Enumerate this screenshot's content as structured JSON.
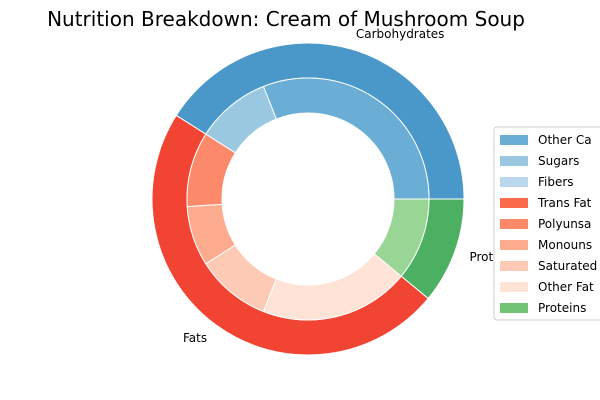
{
  "chart_data": {
    "type": "pie",
    "title": "Nutrition Breakdown:  Cream of Mushroom Soup",
    "outer": {
      "labels": [
        "Carbohydrates",
        "Fats",
        "Proteins"
      ],
      "values": [
        41,
        48,
        11
      ],
      "colors": [
        "#4a98c9",
        "#f14432",
        "#4bb062"
      ]
    },
    "inner": {
      "labels": [
        "Other Carbohydrates",
        "Sugars",
        "Fibers",
        "Trans Fats",
        "Polyunsaturated Fats",
        "Monounsaturated Fats",
        "Saturated Fats",
        "Other Fats",
        "Proteins"
      ],
      "values": [
        31,
        10,
        0,
        0,
        10,
        8,
        10,
        20,
        11
      ],
      "colors": [
        "#6aaed6",
        "#9ac8e0",
        "#b9d8ec",
        "#fb6a4a",
        "#fc8a6a",
        "#fcab8f",
        "#fdcab5",
        "#fee3d6",
        "#99d595"
      ]
    },
    "legend": {
      "placement": "right, clipped",
      "entries": [
        {
          "label": "Other Ca",
          "color": "#6aaed6"
        },
        {
          "label": "Sugars",
          "color": "#9ac8e0"
        },
        {
          "label": "Fibers",
          "color": "#b9d8ec"
        },
        {
          "label": "Trans Fat",
          "color": "#fb6a4a"
        },
        {
          "label": "Polyunsa",
          "color": "#fc8a6a"
        },
        {
          "label": "Monouns",
          "color": "#fcab8f"
        },
        {
          "label": "Saturated",
          "color": "#fdcab5"
        },
        {
          "label": "Other Fat",
          "color": "#fee3d6"
        },
        {
          "label": "Proteins",
          "color": "#74c476"
        }
      ]
    }
  }
}
